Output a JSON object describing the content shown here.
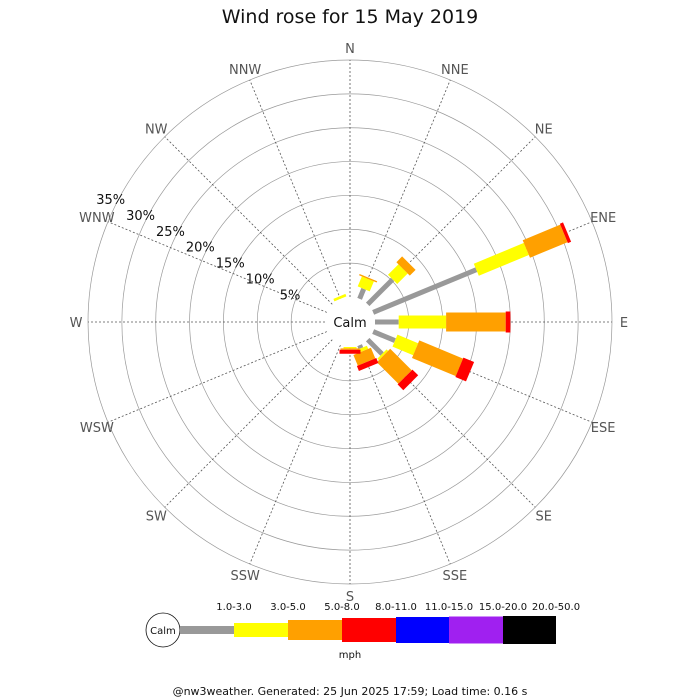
{
  "title": "Wind rose for 15 May 2019",
  "footer": "@nw3weather. Generated: 25 Jun 2025 17:59; Load time: 0.16 s",
  "chart_data": {
    "type": "windrose",
    "title": "Wind rose for 15 May 2019",
    "directions": [
      "N",
      "NNE",
      "NE",
      "ENE",
      "E",
      "ESE",
      "SE",
      "SSE",
      "S",
      "SSW",
      "SW",
      "WSW",
      "W",
      "WNW",
      "NW",
      "NNW"
    ],
    "ring_labels": [
      "5%",
      "10%",
      "15%",
      "20%",
      "25%",
      "30%",
      "35%"
    ],
    "ring_percent_values": [
      5,
      10,
      15,
      20,
      25,
      30,
      35
    ],
    "calm_label": "Calm",
    "unit_label": "mph",
    "speed_bins": [
      {
        "label": "1.0-3.0",
        "color": "#999999"
      },
      {
        "label": "3.0-5.0",
        "color": "#ffff00"
      },
      {
        "label": "5.0-8.0",
        "color": "#ffa000"
      },
      {
        "label": "8.0-11.0",
        "color": "#ff0000"
      },
      {
        "label": "11.0-15.0",
        "color": "#0000ff"
      },
      {
        "label": "15.0-20.0",
        "color": "#a020f0"
      },
      {
        "label": "20.0-50.0",
        "color": "#000000"
      }
    ],
    "cumulative_percent": {
      "N": [
        0,
        0,
        0,
        0,
        0,
        0,
        0
      ],
      "NNE": [
        1.6,
        3.2,
        3.4,
        3.4,
        3.4,
        3.4,
        3.4
      ],
      "NE": [
        5.2,
        7.4,
        8.6,
        8.6,
        8.6,
        8.6,
        8.6
      ],
      "ENE": [
        16.5,
        24.5,
        30.5,
        31.0,
        31.0,
        31.0,
        31.0
      ],
      "E": [
        3.5,
        10.5,
        19.3,
        20.0,
        20.0,
        20.0,
        20.0
      ],
      "ESE": [
        3.5,
        6.8,
        13.8,
        15.5,
        15.5,
        15.5,
        15.5
      ],
      "SE": [
        3.0,
        3.3,
        7.8,
        9.0,
        9.0,
        9.0,
        9.0
      ],
      "SSE": [
        0.5,
        1.0,
        2.7,
        3.5,
        3.5,
        3.5,
        3.5
      ],
      "S": [
        0,
        0.2,
        0.4,
        1.0,
        1.0,
        1.0,
        1.0
      ],
      "SSW": [
        0,
        0,
        0,
        0,
        0,
        0,
        0
      ],
      "SW": [
        0,
        0,
        0,
        0,
        0,
        0,
        0
      ],
      "WSW": [
        0,
        0,
        0,
        0,
        0,
        0,
        0
      ],
      "W": [
        0,
        0,
        0,
        0,
        0,
        0,
        0
      ],
      "WNW": [
        0,
        0,
        0,
        0,
        0,
        0,
        0
      ],
      "NW": [
        0,
        0,
        0,
        0,
        0,
        0,
        0
      ],
      "NNW": [
        0,
        0.4,
        0.4,
        0.4,
        0.4,
        0.4,
        0.4
      ]
    },
    "grid": true
  }
}
